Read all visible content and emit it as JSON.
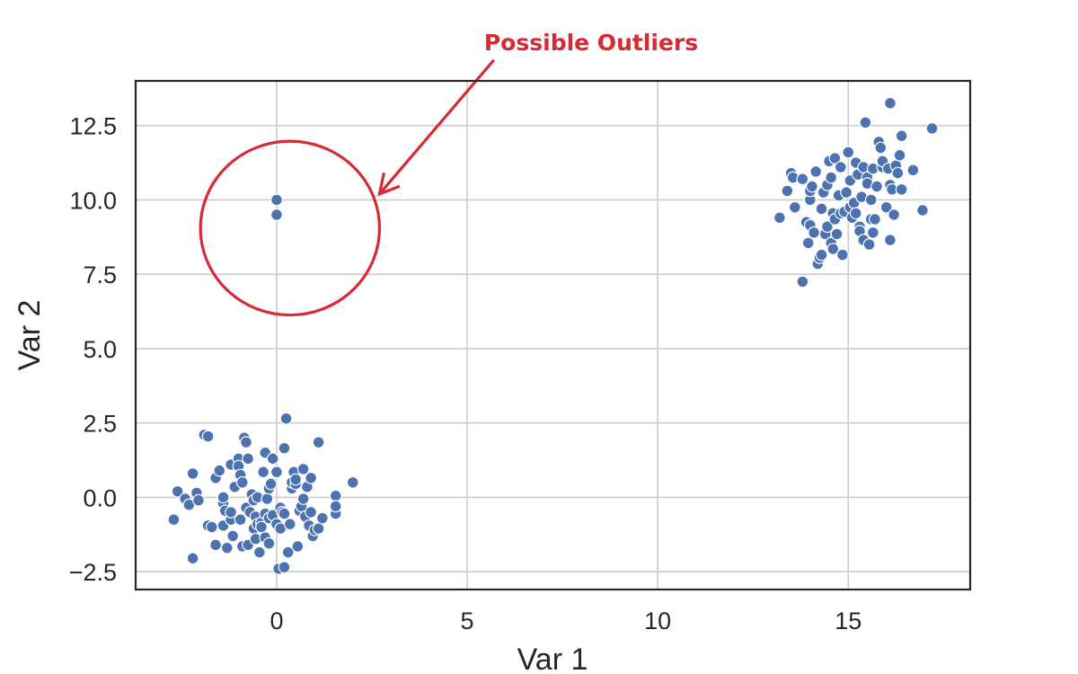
{
  "chart_data": {
    "type": "scatter",
    "title": "",
    "xlabel": "Var 1",
    "ylabel": "Var 2",
    "xlim": [
      -3.7,
      18.2
    ],
    "ylim": [
      -3.1,
      14.0
    ],
    "xticks": [
      0,
      5,
      10,
      15
    ],
    "xtick_labels": [
      "0",
      "5",
      "10",
      "15"
    ],
    "yticks": [
      -2.5,
      0.0,
      2.5,
      5.0,
      7.5,
      10.0,
      12.5
    ],
    "ytick_labels": [
      "−2.5",
      "0.0",
      "2.5",
      "5.0",
      "7.5",
      "10.0",
      "12.5"
    ],
    "grid": true,
    "legend": "none",
    "point_color": "#4c72b0",
    "annotation": {
      "text": "Possible Outliers",
      "color": "#d62a35",
      "circle_center": [
        0.35,
        9.05
      ],
      "circle_radius_x": 2.35,
      "arrow_start": [
        5.7,
        14.7
      ],
      "arrow_end": [
        2.7,
        10.2
      ]
    },
    "series": [
      {
        "values": [
          [
            0.0,
            10.0
          ],
          [
            0.0,
            9.5
          ],
          [
            -2.7,
            -0.75
          ],
          [
            -2.6,
            0.2
          ],
          [
            -2.4,
            -0.05
          ],
          [
            -2.3,
            -0.25
          ],
          [
            -2.2,
            0.8
          ],
          [
            -2.2,
            -2.05
          ],
          [
            -2.1,
            0.15
          ],
          [
            -2.05,
            -0.1
          ],
          [
            -1.9,
            2.1
          ],
          [
            -1.8,
            2.05
          ],
          [
            -1.8,
            -0.95
          ],
          [
            -1.7,
            -1.0
          ],
          [
            -1.6,
            -1.6
          ],
          [
            -1.6,
            0.65
          ],
          [
            -1.5,
            0.9
          ],
          [
            -1.4,
            -0.95
          ],
          [
            -1.4,
            -0.2
          ],
          [
            -1.4,
            0.0
          ],
          [
            -1.35,
            -0.45
          ],
          [
            -1.3,
            -1.7
          ],
          [
            -1.2,
            1.1
          ],
          [
            -1.2,
            -0.75
          ],
          [
            -1.2,
            -0.5
          ],
          [
            -1.15,
            -1.3
          ],
          [
            -1.1,
            0.35
          ],
          [
            -1.0,
            1.3
          ],
          [
            -1.0,
            1.05
          ],
          [
            -0.95,
            0.75
          ],
          [
            -0.9,
            0.5
          ],
          [
            -0.95,
            -0.75
          ],
          [
            -0.9,
            -1.65
          ],
          [
            -0.85,
            2.0
          ],
          [
            -0.8,
            1.85
          ],
          [
            -0.8,
            -0.35
          ],
          [
            -0.75,
            1.3
          ],
          [
            -0.75,
            -1.6
          ],
          [
            -0.7,
            -0.5
          ],
          [
            -0.65,
            0.1
          ],
          [
            -0.6,
            -0.1
          ],
          [
            -0.6,
            -1.05
          ],
          [
            -0.55,
            -0.65
          ],
          [
            -0.55,
            -1.4
          ],
          [
            -0.5,
            -0.9
          ],
          [
            -0.5,
            0.0
          ],
          [
            -0.45,
            -1.85
          ],
          [
            -0.4,
            -0.85
          ],
          [
            -0.4,
            -1.0
          ],
          [
            -0.35,
            0.85
          ],
          [
            -0.3,
            -0.55
          ],
          [
            -0.3,
            -1.35
          ],
          [
            -0.3,
            1.5
          ],
          [
            -0.25,
            -0.05
          ],
          [
            -0.2,
            0.3
          ],
          [
            -0.2,
            -0.7
          ],
          [
            -0.2,
            -1.55
          ],
          [
            -0.15,
            0.45
          ],
          [
            -0.1,
            1.3
          ],
          [
            -0.1,
            -0.6
          ],
          [
            0.0,
            0.85
          ],
          [
            0.0,
            -0.9
          ],
          [
            0.05,
            -2.4
          ],
          [
            0.1,
            -1.05
          ],
          [
            0.1,
            -0.35
          ],
          [
            0.15,
            -0.5
          ],
          [
            0.2,
            -0.55
          ],
          [
            0.2,
            1.65
          ],
          [
            0.2,
            -2.35
          ],
          [
            0.25,
            2.65
          ],
          [
            0.3,
            -1.85
          ],
          [
            0.35,
            -0.9
          ],
          [
            0.4,
            0.3
          ],
          [
            0.4,
            0.5
          ],
          [
            0.45,
            0.85
          ],
          [
            0.5,
            0.45
          ],
          [
            0.5,
            0.6
          ],
          [
            0.55,
            -1.65
          ],
          [
            0.6,
            -0.45
          ],
          [
            0.65,
            -0.3
          ],
          [
            0.7,
            -0.05
          ],
          [
            0.7,
            0.95
          ],
          [
            0.75,
            -0.65
          ],
          [
            0.8,
            0.35
          ],
          [
            0.85,
            -0.95
          ],
          [
            0.9,
            -0.5
          ],
          [
            0.9,
            0.65
          ],
          [
            0.95,
            -1.3
          ],
          [
            1.0,
            -1.1
          ],
          [
            1.1,
            -1.05
          ],
          [
            1.1,
            1.85
          ],
          [
            1.2,
            -0.7
          ],
          [
            1.55,
            0.05
          ],
          [
            1.55,
            -0.55
          ],
          [
            1.55,
            -0.3
          ],
          [
            2.0,
            0.5
          ],
          [
            13.2,
            9.4
          ],
          [
            13.4,
            10.3
          ],
          [
            13.5,
            10.9
          ],
          [
            13.55,
            10.75
          ],
          [
            13.6,
            9.75
          ],
          [
            13.8,
            10.7
          ],
          [
            13.8,
            7.25
          ],
          [
            13.9,
            9.25
          ],
          [
            13.95,
            8.55
          ],
          [
            14.0,
            10.0
          ],
          [
            14.0,
            10.3
          ],
          [
            14.0,
            9.15
          ],
          [
            14.05,
            10.45
          ],
          [
            14.1,
            8.9
          ],
          [
            14.15,
            10.95
          ],
          [
            14.2,
            7.85
          ],
          [
            14.25,
            8.05
          ],
          [
            14.3,
            9.7
          ],
          [
            14.3,
            8.15
          ],
          [
            14.35,
            10.25
          ],
          [
            14.4,
            8.85
          ],
          [
            14.45,
            9.1
          ],
          [
            14.45,
            10.5
          ],
          [
            14.5,
            11.3
          ],
          [
            14.55,
            10.75
          ],
          [
            14.55,
            8.55
          ],
          [
            14.6,
            8.35
          ],
          [
            14.6,
            9.55
          ],
          [
            14.65,
            11.4
          ],
          [
            14.65,
            9.35
          ],
          [
            14.7,
            8.85
          ],
          [
            14.75,
            10.15
          ],
          [
            14.8,
            9.55
          ],
          [
            14.8,
            11.1
          ],
          [
            14.85,
            8.15
          ],
          [
            14.9,
            9.6
          ],
          [
            14.95,
            10.25
          ],
          [
            15.0,
            11.6
          ],
          [
            15.05,
            9.75
          ],
          [
            15.05,
            10.65
          ],
          [
            15.1,
            9.4
          ],
          [
            15.15,
            9.9
          ],
          [
            15.2,
            9.55
          ],
          [
            15.2,
            11.25
          ],
          [
            15.25,
            10.85
          ],
          [
            15.3,
            9.1
          ],
          [
            15.3,
            8.95
          ],
          [
            15.35,
            10.1
          ],
          [
            15.4,
            8.65
          ],
          [
            15.4,
            11.1
          ],
          [
            15.45,
            12.6
          ],
          [
            15.5,
            10.75
          ],
          [
            15.5,
            10.55
          ],
          [
            15.55,
            8.5
          ],
          [
            15.6,
            10.0
          ],
          [
            15.6,
            9.35
          ],
          [
            15.65,
            11.05
          ],
          [
            15.65,
            8.9
          ],
          [
            15.7,
            9.35
          ],
          [
            15.75,
            10.45
          ],
          [
            15.8,
            11.95
          ],
          [
            15.85,
            11.75
          ],
          [
            15.9,
            11.1
          ],
          [
            15.9,
            11.3
          ],
          [
            16.0,
            9.75
          ],
          [
            16.05,
            11.05
          ],
          [
            16.1,
            13.25
          ],
          [
            16.1,
            10.5
          ],
          [
            16.1,
            8.65
          ],
          [
            16.15,
            10.35
          ],
          [
            16.2,
            9.5
          ],
          [
            16.25,
            11.15
          ],
          [
            16.3,
            10.9
          ],
          [
            16.35,
            11.5
          ],
          [
            16.4,
            12.15
          ],
          [
            16.4,
            10.35
          ],
          [
            16.7,
            11.0
          ],
          [
            16.95,
            9.65
          ],
          [
            17.2,
            12.4
          ]
        ]
      }
    ]
  }
}
